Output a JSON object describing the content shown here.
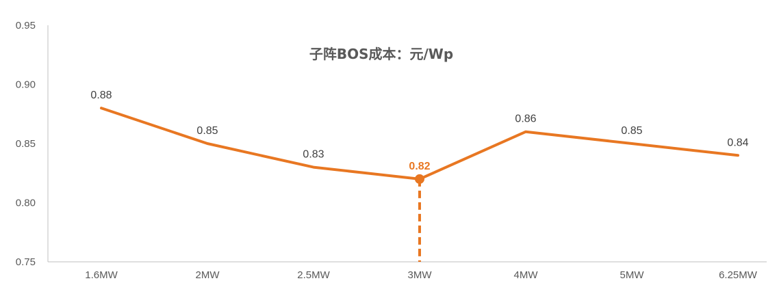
{
  "chart_data": {
    "type": "line",
    "title": "子阵BOS成本：元/Wp",
    "xlabel": "",
    "ylabel": "",
    "categories": [
      "1.6MW",
      "2MW",
      "2.5MW",
      "3MW",
      "4MW",
      "5MW",
      "6.25MW"
    ],
    "series": [
      {
        "values": [
          0.88,
          0.85,
          0.83,
          0.82,
          0.86,
          0.85,
          0.84
        ],
        "data_labels": [
          "0.88",
          "0.85",
          "0.83",
          "0.82",
          "0.86",
          "0.85",
          "0.84"
        ],
        "color": "#E87722"
      }
    ],
    "ylim": [
      0.75,
      0.95
    ],
    "yticks": [
      "0.75",
      "0.80",
      "0.85",
      "0.90",
      "0.95"
    ],
    "grid": false,
    "legend": "none",
    "highlight": {
      "category": "3MW",
      "value": 0.82,
      "label": "0.82",
      "marker": "dot",
      "drop_line": "dashed",
      "color": "#E87722"
    },
    "colors": {
      "line": "#E87722",
      "axis": "#BFBFBF",
      "tick_text": "#595959",
      "label_text": "#404040",
      "title_text": "#595959"
    }
  }
}
